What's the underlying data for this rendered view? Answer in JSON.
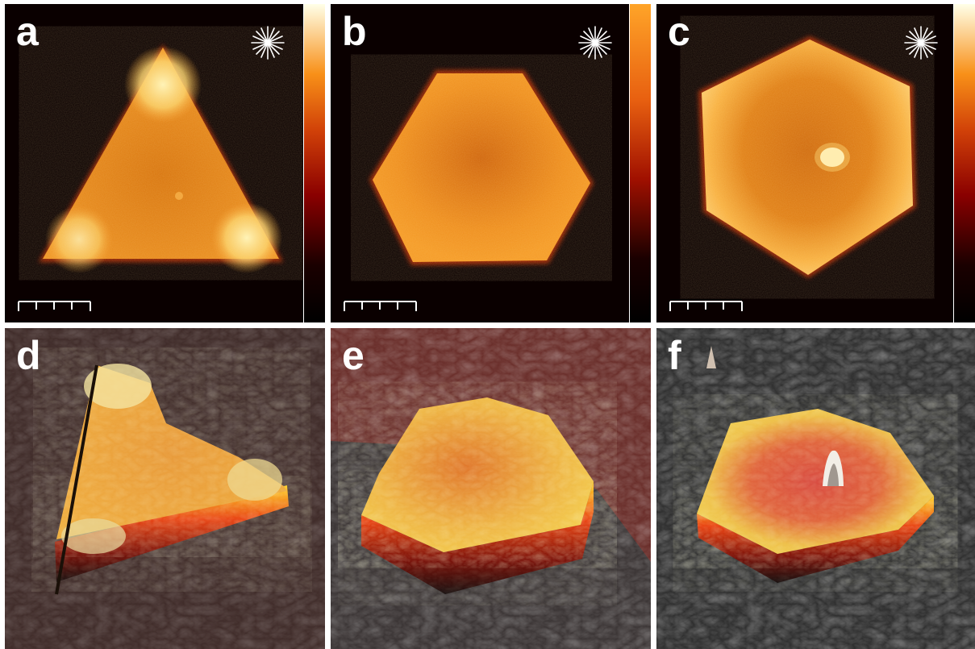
{
  "figure": {
    "panels": [
      {
        "label": "a",
        "kind": "2d",
        "shape": "triangle"
      },
      {
        "label": "b",
        "kind": "2d",
        "shape": "hexagon"
      },
      {
        "label": "c",
        "kind": "2d",
        "shape": "hexagon"
      },
      {
        "label": "d",
        "kind": "3d",
        "shape": "triangle"
      },
      {
        "label": "e",
        "kind": "3d",
        "shape": "hexagon"
      },
      {
        "label": "f",
        "kind": "3d",
        "shape": "hexagon"
      }
    ],
    "colors": {
      "background": "#0a0000",
      "particle_main": "#e8850f",
      "particle_bright": "#ffe9a0",
      "colorbar": [
        "#000000",
        "#8a0000",
        "#e0600a",
        "#ffb020",
        "#ffffe0"
      ],
      "surface_3d_dark": "#2c2c2c",
      "surface_3d_red": "#7a2a24"
    },
    "icons": [
      "compass-rose-icon",
      "scale-bar-icon"
    ]
  }
}
